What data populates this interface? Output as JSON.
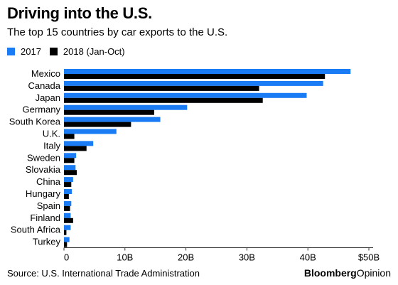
{
  "title": "Driving into the U.S.",
  "subtitle": "The top 15 countries by car exports to the U.S.",
  "source": "Source: U.S. International Trade Administration",
  "brand": {
    "bold": "Bloomberg",
    "light": "Opinion"
  },
  "colors": {
    "series_2017": "#1a7cf5",
    "series_2018": "#000000",
    "axis": "#333333"
  },
  "chart_data": {
    "type": "bar",
    "orientation": "horizontal",
    "categories": [
      "Mexico",
      "Canada",
      "Japan",
      "Germany",
      "South Korea",
      "U.K.",
      "Italy",
      "Sweden",
      "Slovakia",
      "China",
      "Hungary",
      "Spain",
      "Finland",
      "South Africa",
      "Turkey"
    ],
    "series": [
      {
        "name": "2017",
        "color": "#1a7cf5",
        "values": [
          47,
          42.5,
          39.8,
          20.2,
          15.8,
          8.6,
          4.8,
          2.0,
          1.9,
          1.5,
          1.3,
          1.2,
          1.1,
          1.1,
          0.9
        ]
      },
      {
        "name": "2018 (Jan-Oct)",
        "color": "#000000",
        "values": [
          42.8,
          32,
          32.6,
          14.8,
          11,
          1.7,
          3.7,
          1.7,
          2.1,
          1.2,
          0.8,
          1.0,
          1.5,
          0.4,
          0.5
        ]
      }
    ],
    "unit": "billion USD",
    "xlim": [
      0,
      50
    ],
    "xticks": [
      0,
      10,
      20,
      30,
      40,
      50
    ],
    "xtick_labels": [
      "0",
      "10B",
      "20B",
      "30B",
      "40B",
      "$50B"
    ],
    "grid": false,
    "legend_position": "top-left"
  }
}
